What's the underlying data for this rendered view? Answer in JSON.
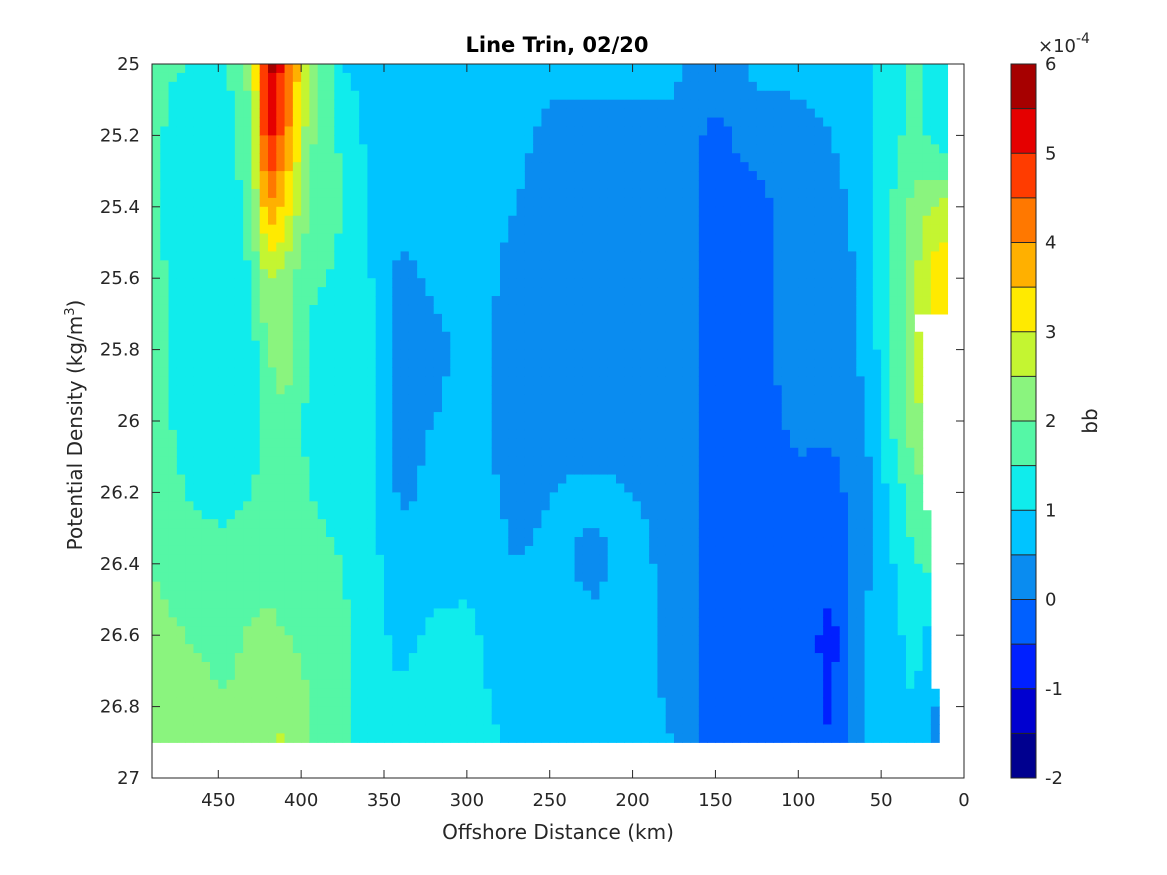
{
  "chart_data": {
    "type": "heatmap",
    "subtype": "filled-contour",
    "title": "Line Trin, 02/20",
    "xlabel": "Offshore Distance (km)",
    "ylabel_main": "Potential Density (kg/m",
    "ylabel_sup": "3",
    "ylabel_tail": ")",
    "x_reversed": true,
    "y_reversed": true,
    "xlim": [
      0,
      490
    ],
    "ylim": [
      25,
      27
    ],
    "xticks": [
      450,
      400,
      350,
      300,
      250,
      200,
      150,
      100,
      50,
      0
    ],
    "yticks": [
      25,
      25.2,
      25.4,
      25.6,
      25.8,
      26,
      26.2,
      26.4,
      26.6,
      26.8,
      27
    ],
    "data_extent": {
      "x": [
        10,
        490
      ],
      "y": [
        25,
        26.9
      ]
    },
    "colorbar": {
      "label": "bb",
      "scale_note": "×10",
      "scale_exponent": "-4",
      "range": [
        -2,
        6
      ],
      "ticks": [
        -2,
        -1,
        0,
        1,
        2,
        3,
        4,
        5,
        6
      ],
      "levels": [
        -2,
        -1.5,
        -1,
        -0.5,
        0,
        0.5,
        1,
        1.5,
        2,
        2.5,
        3,
        3.5,
        4,
        4.5,
        5,
        5.5,
        6
      ],
      "colors": [
        "#00008f",
        "#0000d0",
        "#0020ff",
        "#0060ff",
        "#0a8cf0",
        "#00c4ff",
        "#10ecec",
        "#55f7a6",
        "#8af47e",
        "#c4f531",
        "#ffea00",
        "#ffb000",
        "#ff7800",
        "#ff3c00",
        "#e50000",
        "#a60000"
      ]
    },
    "columns": [
      {
        "x": 490,
        "values": [
          1.6,
          1.6,
          1.6,
          1.7,
          1.8,
          1.8,
          1.9,
          2.0,
          2.2,
          2.4
        ]
      },
      {
        "x": 470,
        "values": [
          1.5,
          1.3,
          1.2,
          1.2,
          1.2,
          1.3,
          1.5,
          1.6,
          2.0,
          2.3
        ]
      },
      {
        "x": 445,
        "values": [
          1.5,
          1.2,
          1.1,
          1.1,
          1.1,
          1.2,
          1.4,
          1.6,
          1.8,
          2.2
        ]
      },
      {
        "x": 430,
        "values": [
          2.2,
          2.0,
          1.8,
          1.5,
          1.3,
          1.3,
          1.5,
          1.7,
          2.1,
          2.3
        ]
      },
      {
        "x": 420,
        "values": [
          5.8,
          5.3,
          4.1,
          2.6,
          2.0,
          1.7,
          1.6,
          1.8,
          2.2,
          2.4
        ]
      },
      {
        "x": 410,
        "values": [
          4.8,
          4.3,
          3.3,
          2.3,
          2.3,
          1.9,
          1.6,
          1.7,
          2.0,
          2.6
        ]
      },
      {
        "x": 395,
        "values": [
          2.4,
          2.1,
          1.9,
          1.6,
          1.4,
          1.4,
          1.5,
          1.6,
          1.9,
          2.0
        ]
      },
      {
        "x": 375,
        "values": [
          1.0,
          1.4,
          1.5,
          1.4,
          1.3,
          1.3,
          1.4,
          1.5,
          1.6,
          1.7
        ]
      },
      {
        "x": 360,
        "values": [
          0.8,
          0.9,
          1.0,
          1.1,
          1.1,
          1.1,
          1.1,
          1.2,
          1.3,
          1.3
        ]
      },
      {
        "x": 340,
        "values": [
          0.7,
          0.7,
          0.7,
          0.3,
          0.3,
          0.4,
          0.4,
          0.7,
          0.8,
          1.3
        ]
      },
      {
        "x": 320,
        "values": [
          0.7,
          0.7,
          0.8,
          0.6,
          0.3,
          0.5,
          0.6,
          0.8,
          1.1,
          1.4
        ]
      },
      {
        "x": 300,
        "values": [
          0.7,
          0.7,
          0.8,
          0.8,
          0.7,
          0.7,
          0.8,
          0.9,
          1.1,
          1.2
        ]
      },
      {
        "x": 270,
        "values": [
          0.7,
          0.6,
          0.5,
          0.3,
          0.3,
          0.3,
          0.3,
          0.5,
          0.7,
          0.9
        ]
      },
      {
        "x": 250,
        "values": [
          0.6,
          0.4,
          0.3,
          0.3,
          0.3,
          0.3,
          0.5,
          0.6,
          0.7,
          0.6
        ]
      },
      {
        "x": 225,
        "values": [
          0.6,
          0.4,
          0.3,
          0.3,
          0.3,
          0.3,
          0.6,
          0.4,
          0.6,
          0.7
        ]
      },
      {
        "x": 200,
        "values": [
          0.6,
          0.4,
          0.3,
          0.3,
          0.3,
          0.3,
          0.5,
          0.6,
          0.6,
          0.6
        ]
      },
      {
        "x": 175,
        "values": [
          0.6,
          0.4,
          0.3,
          0.3,
          0.3,
          0.3,
          0.4,
          0.4,
          0.4,
          0.5
        ]
      },
      {
        "x": 150,
        "values": [
          0.3,
          -0.2,
          -0.2,
          -0.2,
          -0.2,
          -0.2,
          -0.2,
          -0.3,
          -0.3,
          -0.4
        ]
      },
      {
        "x": 125,
        "values": [
          0.6,
          0.3,
          -0.2,
          -0.2,
          -0.2,
          -0.2,
          -0.2,
          -0.3,
          -0.2,
          -0.4
        ]
      },
      {
        "x": 100,
        "values": [
          0.6,
          0.4,
          0.3,
          0.3,
          0.3,
          0.1,
          -0.1,
          -0.2,
          -0.2,
          -0.3
        ]
      },
      {
        "x": 80,
        "values": [
          0.6,
          0.5,
          0.4,
          0.3,
          0.3,
          0.1,
          -0.2,
          -0.3,
          -0.7,
          -0.5
        ]
      },
      {
        "x": 60,
        "values": [
          0.8,
          0.7,
          0.6,
          0.6,
          0.6,
          0.4,
          0.3,
          0.3,
          0.6,
          0.6
        ]
      },
      {
        "x": 45,
        "values": [
          1.2,
          1.3,
          1.4,
          1.4,
          1.4,
          1.4,
          1.1,
          0.9,
          0.8,
          0.8
        ]
      },
      {
        "x": 30,
        "values": [
          1.7,
          1.7,
          2.2,
          2.4,
          2.6,
          2.4,
          1.8,
          1.5,
          1.2,
          0.9
        ]
      },
      {
        "x": 15,
        "values": [
          1.0,
          1.2,
          2.6,
          3.5,
          2.9,
          2.7,
          2.2,
          1.6,
          0.6,
          0.3
        ]
      }
    ],
    "row_y": [
      25.0,
      25.2,
      25.4,
      25.6,
      25.8,
      26.0,
      26.2,
      26.4,
      26.6,
      26.9
    ]
  }
}
